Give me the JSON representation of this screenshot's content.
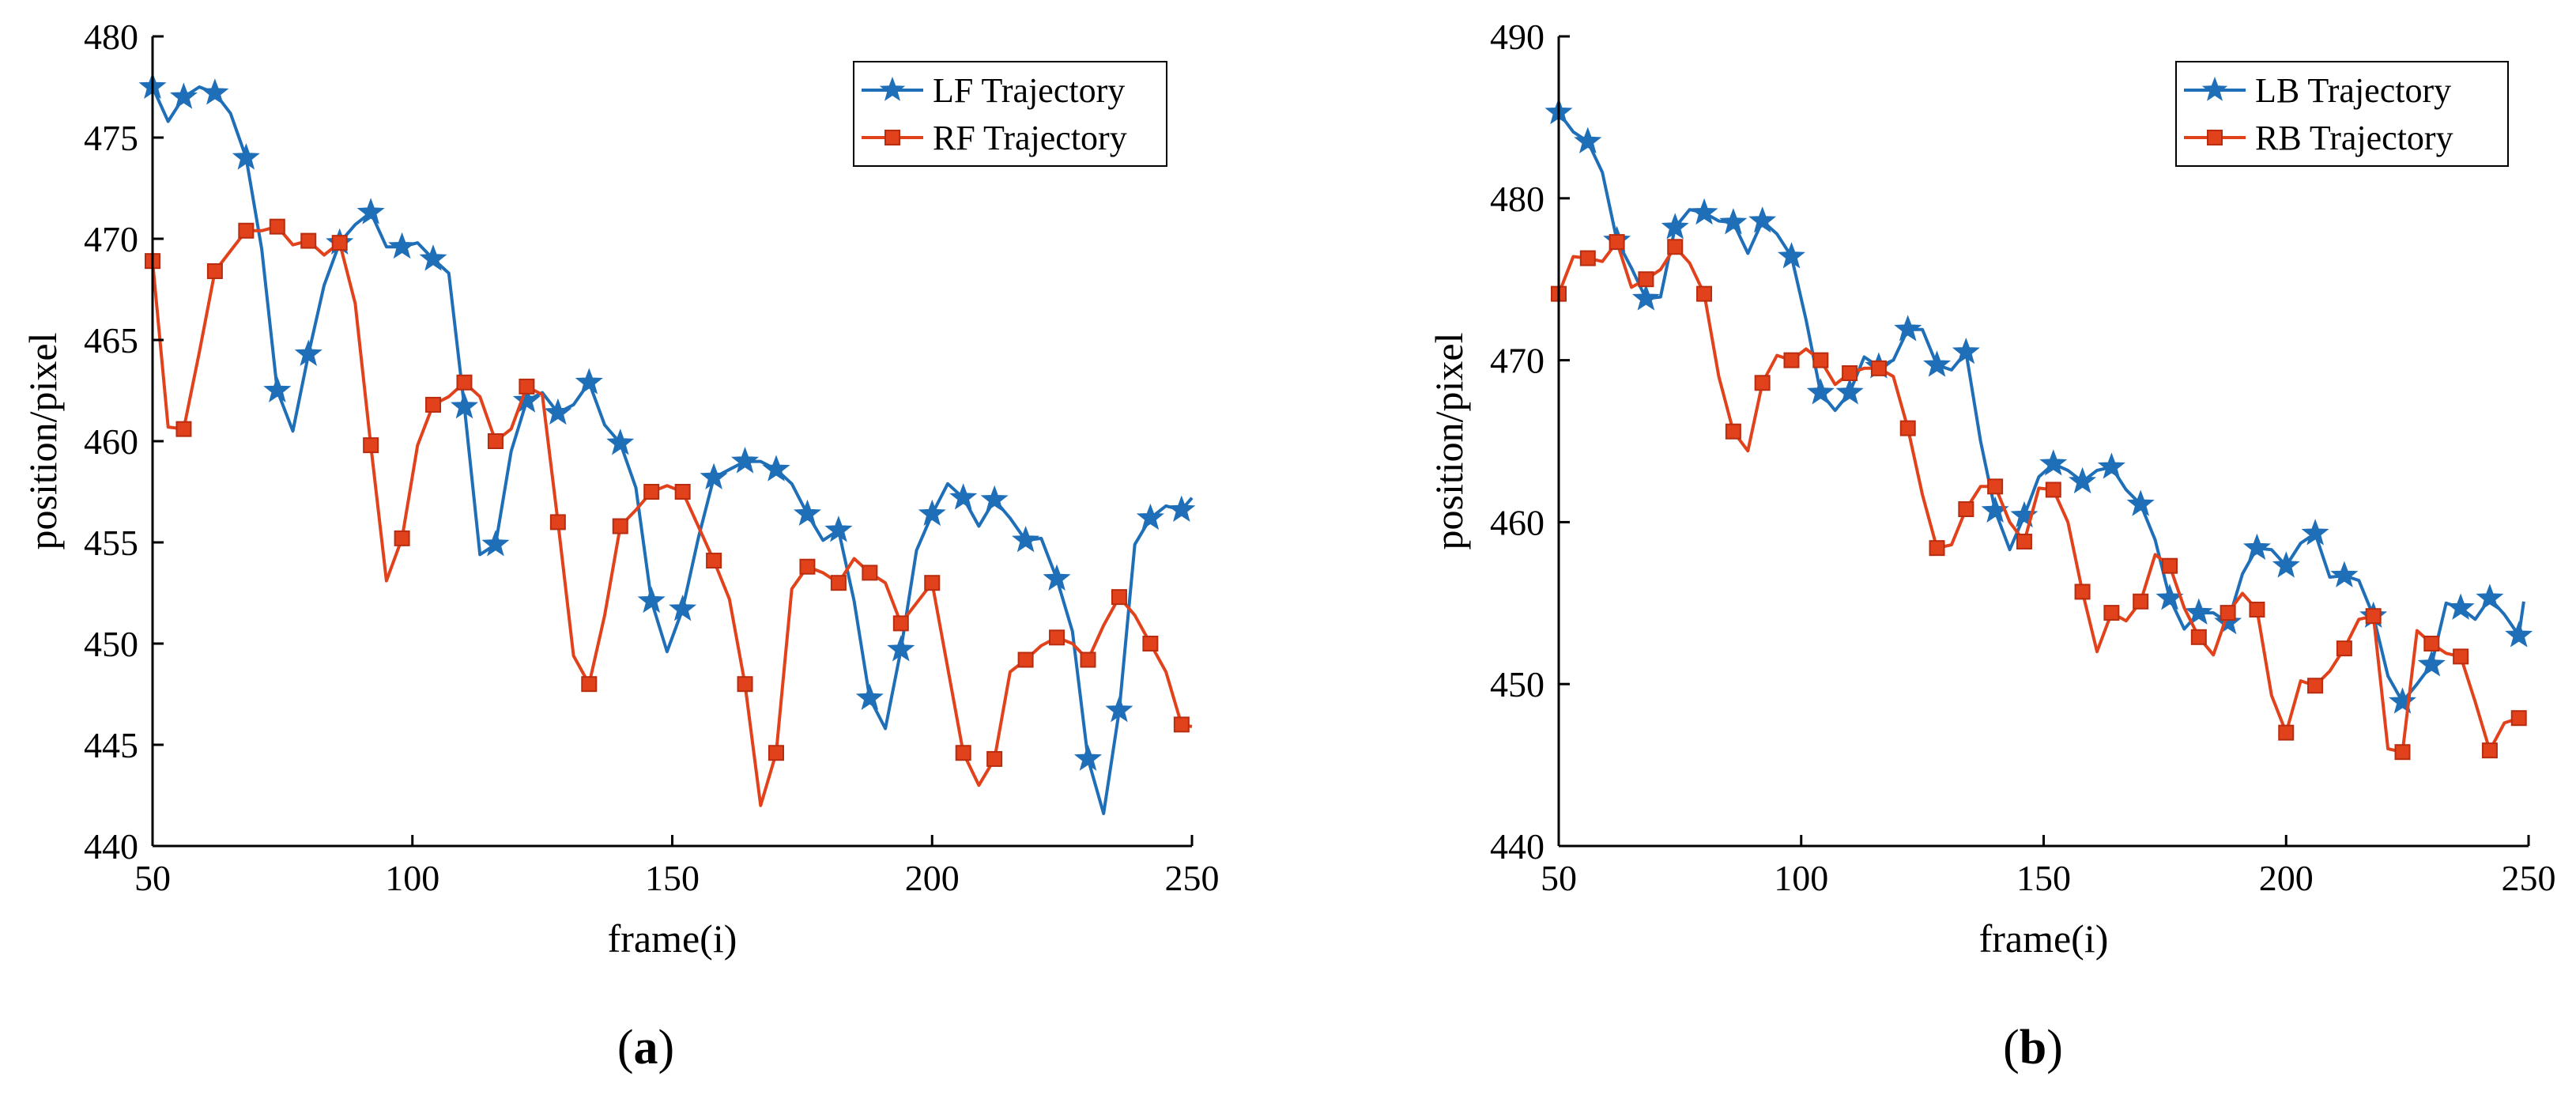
{
  "figure": {
    "colors": {
      "blue": "#1f6fb8",
      "orange": "#e2421b",
      "axis": "#000000"
    },
    "panels": [
      {
        "label_open": "(",
        "label_letter": "a",
        "label_close": ")"
      },
      {
        "label_open": "(",
        "label_letter": "b",
        "label_close": ")"
      }
    ]
  },
  "chart_data": [
    {
      "type": "line",
      "panel": "a",
      "xlabel": "frame(i)",
      "ylabel": "position/pixel",
      "xlim": [
        50,
        250
      ],
      "ylim": [
        440,
        480
      ],
      "xticks": [
        50,
        100,
        150,
        200,
        250
      ],
      "yticks": [
        440,
        445,
        450,
        455,
        460,
        465,
        470,
        475,
        480
      ],
      "legend_position": "top-right",
      "series": [
        {
          "name": "LF Trajectory",
          "marker": "star",
          "color": "#1f6fb8",
          "x": [
            50,
            53,
            56,
            59,
            62,
            65,
            68,
            71,
            74,
            77,
            80,
            83,
            86,
            89,
            92,
            95,
            98,
            101,
            104,
            107,
            110,
            113,
            116,
            119,
            122,
            125,
            128,
            131,
            134,
            137,
            140,
            143,
            146,
            149,
            152,
            155,
            158,
            161,
            164,
            167,
            170,
            173,
            176,
            179,
            182,
            185,
            188,
            191,
            194,
            197,
            200,
            203,
            206,
            209,
            212,
            215,
            218,
            221,
            224,
            227,
            230,
            233,
            236,
            239,
            242,
            245,
            248,
            250
          ],
          "y": [
            477.5,
            475.8,
            477.0,
            477.5,
            477.2,
            476.2,
            474.0,
            469.5,
            462.5,
            460.5,
            464.3,
            467.7,
            469.8,
            470.7,
            471.3,
            469.6,
            469.6,
            469.8,
            469.0,
            468.3,
            461.7,
            454.4,
            454.9,
            459.5,
            462.0,
            462.4,
            461.4,
            461.8,
            462.9,
            460.8,
            459.9,
            457.7,
            452.1,
            449.6,
            451.7,
            455.2,
            458.2,
            458.6,
            459.0,
            459.0,
            458.6,
            457.9,
            456.4,
            455.1,
            455.6,
            452.1,
            447.3,
            445.8,
            449.7,
            454.6,
            456.4,
            457.9,
            457.2,
            455.8,
            457.1,
            456.2,
            455.1,
            455.2,
            453.2,
            450.6,
            444.3,
            441.6,
            446.7,
            454.9,
            456.2,
            456.8,
            456.6,
            457.2
          ]
        },
        {
          "name": "RF Trajectory",
          "marker": "square",
          "color": "#e2421b",
          "x": [
            50,
            53,
            56,
            59,
            62,
            65,
            68,
            71,
            74,
            77,
            80,
            83,
            86,
            89,
            92,
            95,
            98,
            101,
            104,
            107,
            110,
            113,
            116,
            119,
            122,
            125,
            128,
            131,
            134,
            137,
            140,
            143,
            146,
            149,
            152,
            155,
            158,
            161,
            164,
            167,
            170,
            173,
            176,
            179,
            182,
            185,
            188,
            191,
            194,
            197,
            200,
            203,
            206,
            209,
            212,
            215,
            218,
            221,
            224,
            227,
            230,
            233,
            236,
            239,
            242,
            245,
            248,
            250
          ],
          "y": [
            468.9,
            460.7,
            460.6,
            464.4,
            468.4,
            469.4,
            470.4,
            470.4,
            470.6,
            469.7,
            469.9,
            469.2,
            469.8,
            466.8,
            459.8,
            453.1,
            455.2,
            459.8,
            461.8,
            462.2,
            462.9,
            462.2,
            460.0,
            460.6,
            462.7,
            462.3,
            456.0,
            449.4,
            448.0,
            451.4,
            455.8,
            456.6,
            457.5,
            457.8,
            457.5,
            455.8,
            454.1,
            452.2,
            448.0,
            442.0,
            444.6,
            452.7,
            453.8,
            453.5,
            453.0,
            454.2,
            453.5,
            453.0,
            451.0,
            452.0,
            453.0,
            448.8,
            444.6,
            443.0,
            444.3,
            448.6,
            449.2,
            449.9,
            450.3,
            450.0,
            449.2,
            450.9,
            452.3,
            451.4,
            450.0,
            448.6,
            446.0,
            445.9
          ]
        }
      ]
    },
    {
      "type": "line",
      "panel": "b",
      "xlabel": "frame(i)",
      "ylabel": "position/pixel",
      "xlim": [
        50,
        250
      ],
      "ylim": [
        440,
        490
      ],
      "xticks": [
        50,
        100,
        150,
        200,
        250
      ],
      "yticks": [
        440,
        450,
        460,
        470,
        480,
        490
      ],
      "legend_position": "top-right",
      "series": [
        {
          "name": "LB Trajectory",
          "marker": "star",
          "color": "#1f6fb8",
          "x": [
            50,
            53,
            56,
            59,
            62,
            65,
            68,
            71,
            74,
            77,
            80,
            83,
            86,
            89,
            92,
            95,
            98,
            101,
            104,
            107,
            110,
            113,
            116,
            119,
            122,
            125,
            128,
            131,
            134,
            137,
            140,
            143,
            146,
            149,
            152,
            155,
            158,
            161,
            164,
            167,
            170,
            173,
            176,
            179,
            182,
            185,
            188,
            191,
            194,
            197,
            200,
            203,
            206,
            209,
            212,
            215,
            218,
            221,
            224,
            227,
            230,
            233,
            236,
            239,
            242,
            245,
            248,
            249
          ],
          "y": [
            485.3,
            484.1,
            483.5,
            481.6,
            477.4,
            475.7,
            473.8,
            473.9,
            478.2,
            479.3,
            479.1,
            478.6,
            478.5,
            476.6,
            478.6,
            477.8,
            476.4,
            472.5,
            468.0,
            466.9,
            468.0,
            470.2,
            469.6,
            470.0,
            471.9,
            471.9,
            469.7,
            469.4,
            470.5,
            465.0,
            460.7,
            458.3,
            460.4,
            462.8,
            463.6,
            463.2,
            462.5,
            463.2,
            463.4,
            462.0,
            461.1,
            458.9,
            455.3,
            453.4,
            454.4,
            454.4,
            453.8,
            456.8,
            458.4,
            458.3,
            457.3,
            458.7,
            459.3,
            456.6,
            456.7,
            456.4,
            454.2,
            450.5,
            448.9,
            450.0,
            451.2,
            455.0,
            454.7,
            454.0,
            455.3,
            454.3,
            453.0,
            455.1
          ]
        },
        {
          "name": "RB Trajectory",
          "marker": "square",
          "color": "#e2421b",
          "x": [
            50,
            53,
            56,
            59,
            62,
            65,
            68,
            71,
            74,
            77,
            80,
            83,
            86,
            89,
            92,
            95,
            98,
            101,
            104,
            107,
            110,
            113,
            116,
            119,
            122,
            125,
            128,
            131,
            134,
            137,
            140,
            143,
            146,
            149,
            152,
            155,
            158,
            161,
            164,
            167,
            170,
            173,
            176,
            179,
            182,
            185,
            188,
            191,
            194,
            197,
            200,
            203,
            206,
            209,
            212,
            215,
            218,
            221,
            224,
            227,
            230,
            233,
            236,
            239,
            242,
            245,
            248,
            249
          ],
          "y": [
            474.1,
            476.4,
            476.3,
            476.1,
            477.3,
            474.5,
            475.0,
            475.6,
            477.0,
            476.0,
            474.1,
            469.0,
            465.6,
            464.4,
            468.6,
            470.3,
            470.0,
            470.7,
            470.0,
            468.5,
            469.2,
            469.5,
            469.5,
            469.0,
            465.8,
            461.7,
            458.4,
            458.6,
            460.8,
            462.2,
            462.2,
            460.0,
            458.8,
            462.1,
            462.0,
            460.0,
            455.7,
            452.0,
            454.4,
            453.9,
            455.1,
            458.0,
            457.3,
            454.7,
            452.9,
            451.8,
            454.4,
            455.6,
            454.6,
            449.3,
            447.0,
            450.2,
            449.9,
            450.8,
            452.2,
            454.0,
            454.2,
            446.0,
            445.8,
            453.3,
            452.5,
            451.9,
            451.7,
            448.9,
            445.9,
            447.6,
            447.9,
            448.2
          ]
        }
      ]
    }
  ]
}
